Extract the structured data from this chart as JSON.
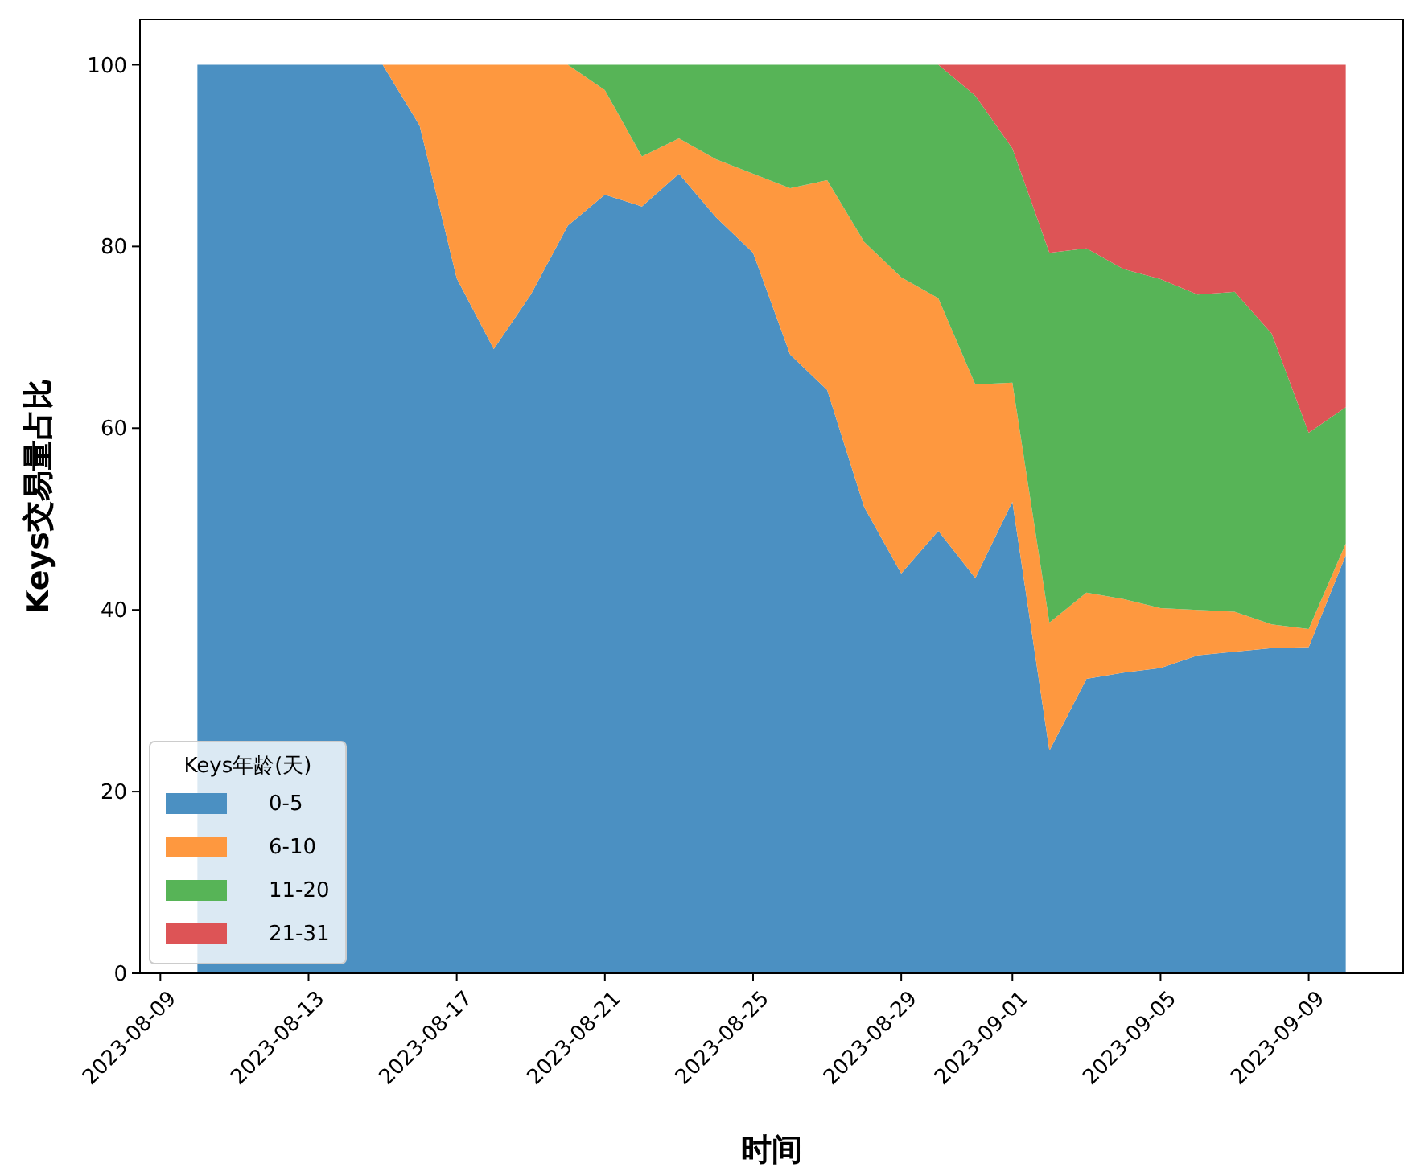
{
  "chart_data": {
    "type": "area",
    "stacked": true,
    "xlabel": "时间",
    "ylabel": "Keys交易量占比",
    "legend_title": "Keys年龄(天)",
    "legend": "bottom left",
    "grid": false,
    "x": [
      "2023-08-10",
      "2023-08-11",
      "2023-08-12",
      "2023-08-13",
      "2023-08-14",
      "2023-08-15",
      "2023-08-16",
      "2023-08-17",
      "2023-08-18",
      "2023-08-19",
      "2023-08-20",
      "2023-08-21",
      "2023-08-22",
      "2023-08-23",
      "2023-08-24",
      "2023-08-25",
      "2023-08-26",
      "2023-08-27",
      "2023-08-28",
      "2023-08-29",
      "2023-08-30",
      "2023-08-31",
      "2023-09-01",
      "2023-09-02",
      "2023-09-03",
      "2023-09-04",
      "2023-09-05",
      "2023-09-06",
      "2023-09-07",
      "2023-09-08",
      "2023-09-09",
      "2023-09-10"
    ],
    "xlim": [
      "2023-08-08T10:48",
      "2023-09-11T13:12"
    ],
    "xticks": [
      "2023-08-09",
      "2023-08-13",
      "2023-08-17",
      "2023-08-21",
      "2023-08-25",
      "2023-08-29",
      "2023-09-01",
      "2023-09-05",
      "2023-09-09"
    ],
    "ylim": [
      0,
      105
    ],
    "yticks": [
      0,
      20,
      40,
      60,
      80,
      100
    ],
    "series": [
      {
        "name": "0-5",
        "color": "#4b90c2",
        "values": [
          100,
          100,
          100,
          100,
          100,
          100,
          93.3,
          76.5,
          68.7,
          74.7,
          82.3,
          85.7,
          84.4,
          88,
          83.2,
          79.3,
          68.1,
          64.2,
          51.3,
          44,
          48.7,
          43.5,
          51.9,
          24.5,
          32.4,
          33.1,
          33.6,
          35,
          35.4,
          35.8,
          35.9,
          46
        ]
      },
      {
        "name": "6-10",
        "color": "#fe983f",
        "values": [
          0,
          0,
          0,
          0,
          0,
          0,
          6.7,
          23.5,
          31.3,
          25.3,
          17.7,
          11.5,
          5.5,
          3.9,
          6.4,
          8.7,
          18.3,
          23.1,
          29.2,
          32.6,
          25.6,
          21.3,
          13.1,
          14.1,
          9.5,
          8.1,
          6.6,
          5,
          4.4,
          2.6,
          2,
          1.3
        ]
      },
      {
        "name": "11-20",
        "color": "#57b457",
        "values": [
          0,
          0,
          0,
          0,
          0,
          0,
          0,
          0,
          0,
          0,
          0,
          2.8,
          10.1,
          8.1,
          10.4,
          12,
          13.6,
          12.7,
          19.5,
          23.4,
          25.7,
          31.8,
          25.8,
          40.7,
          37.9,
          36.3,
          36.2,
          34.7,
          35.2,
          32,
          21.6,
          15
        ]
      },
      {
        "name": "21-31",
        "color": "#dd5456",
        "values": [
          0,
          0,
          0,
          0,
          0,
          0,
          0,
          0,
          0,
          0,
          0,
          0,
          0,
          0,
          0,
          0,
          0,
          0,
          0,
          0,
          0,
          3.4,
          9.2,
          20.7,
          20.2,
          22.5,
          23.6,
          25.3,
          25,
          29.6,
          40.5,
          37.7
        ]
      }
    ]
  }
}
